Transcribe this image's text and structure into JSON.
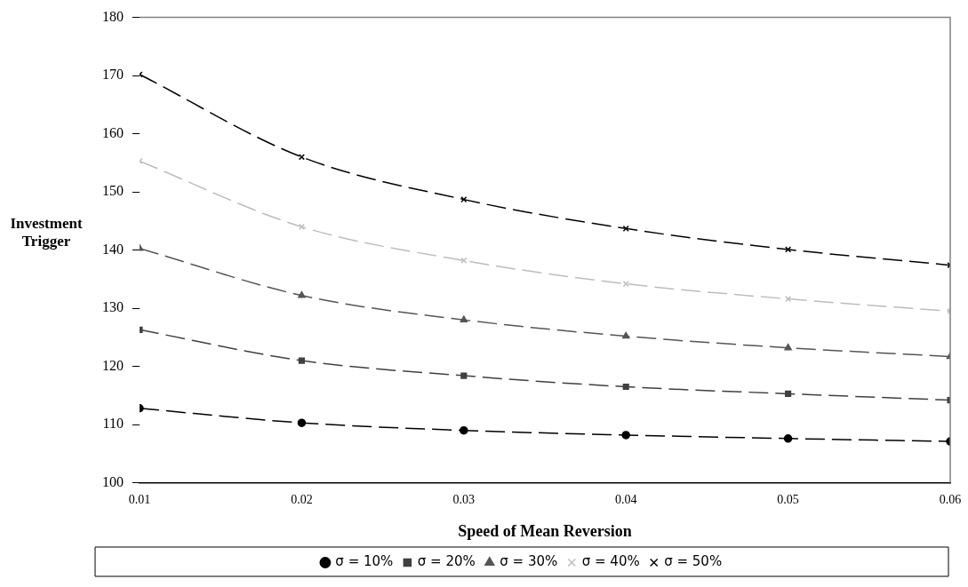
{
  "chart_data": {
    "type": "line",
    "xlabel": "Speed of Mean Reversion",
    "ylabel": "Investment Trigger",
    "x": [
      0.01,
      0.02,
      0.03,
      0.04,
      0.05,
      0.06
    ],
    "xlim": [
      0.01,
      0.06
    ],
    "xticks": [
      {
        "value": 0.01,
        "label": "0.01"
      },
      {
        "value": 0.02,
        "label": "0.02"
      },
      {
        "value": 0.03,
        "label": "0.03"
      },
      {
        "value": 0.04,
        "label": "0.04"
      },
      {
        "value": 0.05,
        "label": "0.05"
      },
      {
        "value": 0.06,
        "label": "0.06"
      }
    ],
    "ylim": [
      100,
      180
    ],
    "yticks": [
      100,
      110,
      120,
      130,
      140,
      150,
      160,
      170,
      180
    ],
    "grid": false,
    "legend": "bottom",
    "line_style": "dashed",
    "series": [
      {
        "name": "σ = 10%",
        "color": "#000000",
        "marker": "circle",
        "values": [
          112.8,
          110.3,
          109.0,
          108.2,
          107.6,
          107.1
        ]
      },
      {
        "name": "σ = 20%",
        "color": "#404040",
        "marker": "square",
        "values": [
          126.3,
          121.0,
          118.4,
          116.5,
          115.3,
          114.2
        ]
      },
      {
        "name": "σ = 30%",
        "color": "#555555",
        "marker": "triangle",
        "values": [
          140.3,
          132.2,
          128.0,
          125.2,
          123.2,
          121.7
        ]
      },
      {
        "name": "σ = 40%",
        "color": "#bdbdbd",
        "marker": "cross",
        "values": [
          155.3,
          144.0,
          138.2,
          134.2,
          131.6,
          129.5
        ]
      },
      {
        "name": "σ = 50%",
        "color": "#000000",
        "marker": "cross",
        "values": [
          170.2,
          156.0,
          148.7,
          143.7,
          140.1,
          137.4
        ]
      }
    ]
  }
}
